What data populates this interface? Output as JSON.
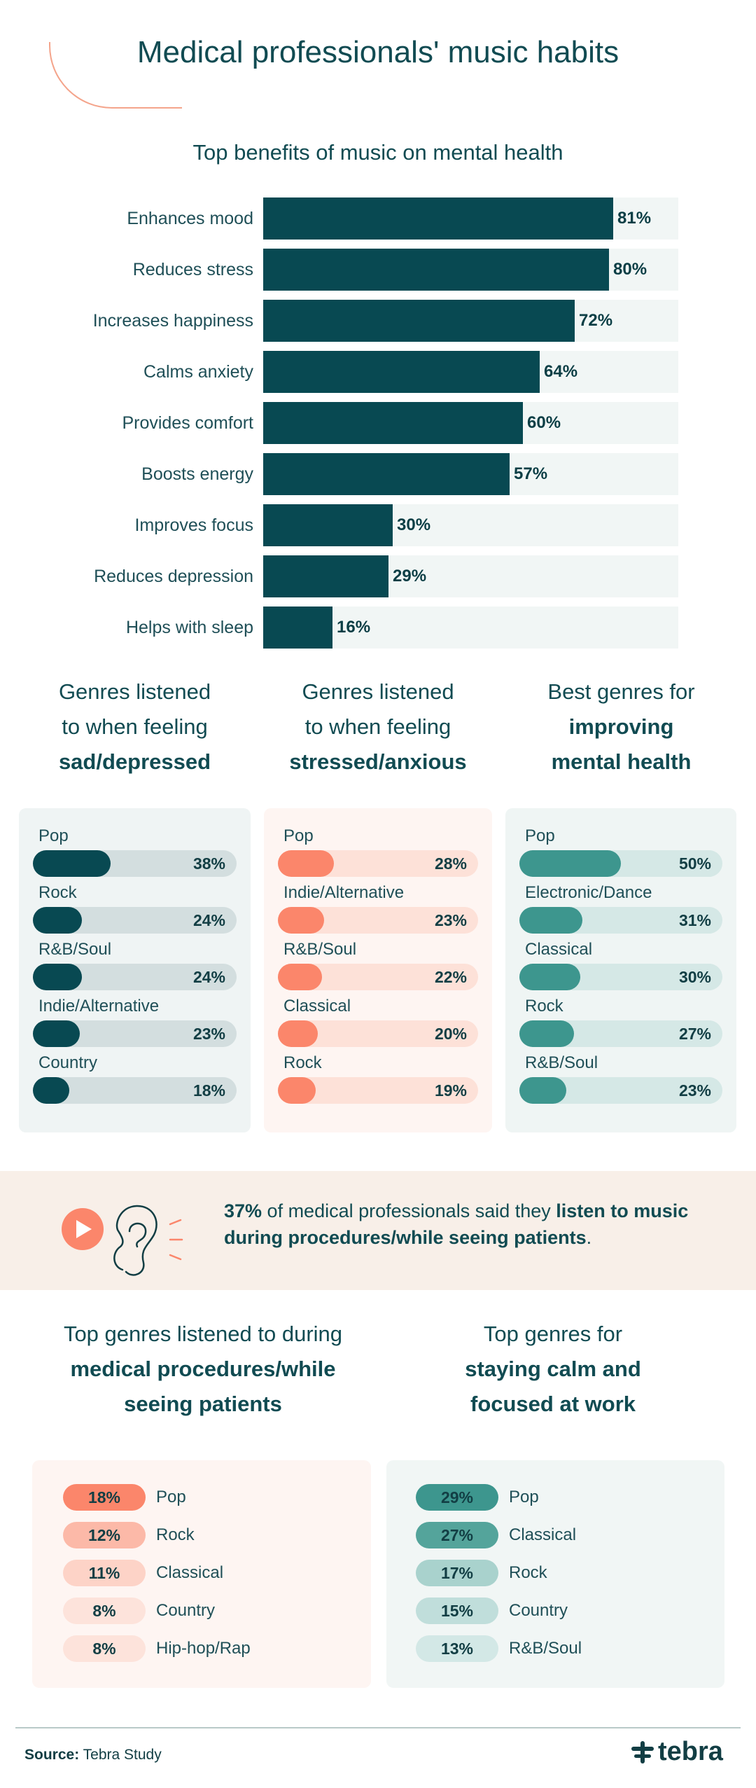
{
  "title": "Medical professionals' music habits",
  "benefits": {
    "title": "Top benefits of music on mental health",
    "chart_data": {
      "type": "bar",
      "categories": [
        "Enhances mood",
        "Reduces stress",
        "Increases happiness",
        "Calms anxiety",
        "Provides comfort",
        "Boosts energy",
        "Improves focus",
        "Reduces depression",
        "Helps with sleep"
      ],
      "values": [
        81,
        80,
        72,
        64,
        60,
        57,
        30,
        29,
        16
      ],
      "labels": [
        "81%",
        "80%",
        "72%",
        "64%",
        "60%",
        "57%",
        "30%",
        "29%",
        "16%"
      ],
      "ylim": [
        0,
        96
      ],
      "colors": {
        "bar": "#084952",
        "track": "#f1f6f5"
      }
    }
  },
  "genre_panels": [
    {
      "title_line1": "Genres listened",
      "title_line2": "to when feeling",
      "title_bold": "sad/depressed",
      "chart_data": {
        "type": "bar",
        "categories": [
          "Pop",
          "Rock",
          "R&B/Soul",
          "Indie/Alternative",
          "Country"
        ],
        "values": [
          38,
          24,
          24,
          23,
          18
        ],
        "labels": [
          "38%",
          "24%",
          "24%",
          "23%",
          "18%"
        ],
        "ylim": [
          0,
          100
        ],
        "colors": {
          "fill": "#084952",
          "track": "#d3dedf",
          "panel": "#eff4f4"
        }
      }
    },
    {
      "title_line1": "Genres listened",
      "title_line2": "to when feeling",
      "title_bold": "stressed/anxious",
      "chart_data": {
        "type": "bar",
        "categories": [
          "Pop",
          "Indie/Alternative",
          "R&B/Soul",
          "Classical",
          "Rock"
        ],
        "values": [
          28,
          23,
          22,
          20,
          19
        ],
        "labels": [
          "28%",
          "23%",
          "22%",
          "20%",
          "19%"
        ],
        "ylim": [
          0,
          100
        ],
        "colors": {
          "fill": "#fb866b",
          "track": "#fde1d8",
          "panel": "#fef5f2"
        }
      }
    },
    {
      "title_line1": "Best genres for",
      "title_bold": "improving mental health",
      "chart_data": {
        "type": "bar",
        "categories": [
          "Pop",
          "Electronic/Dance",
          "Classical",
          "Rock",
          "R&B/Soul"
        ],
        "values": [
          50,
          31,
          30,
          27,
          23
        ],
        "labels": [
          "50%",
          "31%",
          "30%",
          "27%",
          "23%"
        ],
        "ylim": [
          0,
          100
        ],
        "colors": {
          "fill": "#3d968e",
          "track": "#d5e8e6",
          "panel": "#eff5f4"
        }
      }
    }
  ],
  "banner": {
    "stat": "37%",
    "text_1": " of medical professionals said they ",
    "bold_1": "listen to music during procedures/while seeing patients",
    "text_2": ".",
    "icon_play": "play-icon",
    "icon_ear": "ear-icon"
  },
  "procedures": {
    "title_line1": "Top genres listened to during",
    "title_bold1": "medical procedures/while",
    "title_bold2": "seeing patients",
    "chart_data": {
      "type": "table",
      "categories": [
        "Pop",
        "Rock",
        "Classical",
        "Country",
        "Hip-hop/Rap"
      ],
      "values": [
        18,
        12,
        11,
        8,
        8
      ],
      "labels": [
        "18%",
        "12%",
        "11%",
        "8%",
        "8%"
      ],
      "colors": [
        "#fb866b",
        "#fcb9a8",
        "#fdd3c7",
        "#fde3db",
        "#fde3db"
      ]
    }
  },
  "calm": {
    "title_line1": "Top genres for",
    "title_bold1": "staying calm and",
    "title_bold2": "focused at work",
    "chart_data": {
      "type": "table",
      "categories": [
        "Pop",
        "Classical",
        "Rock",
        "Country",
        "R&B/Soul"
      ],
      "values": [
        29,
        27,
        17,
        15,
        13
      ],
      "labels": [
        "29%",
        "27%",
        "17%",
        "15%",
        "13%"
      ],
      "colors": [
        "#3d968e",
        "#54a49b",
        "#a9d2cd",
        "#c0dedb",
        "#d3e8e6"
      ]
    }
  },
  "footer": {
    "source_label": "Source:",
    "source_value": " Tebra Study",
    "brand": "tebra",
    "brand_icon": "tebra-logo-icon"
  }
}
